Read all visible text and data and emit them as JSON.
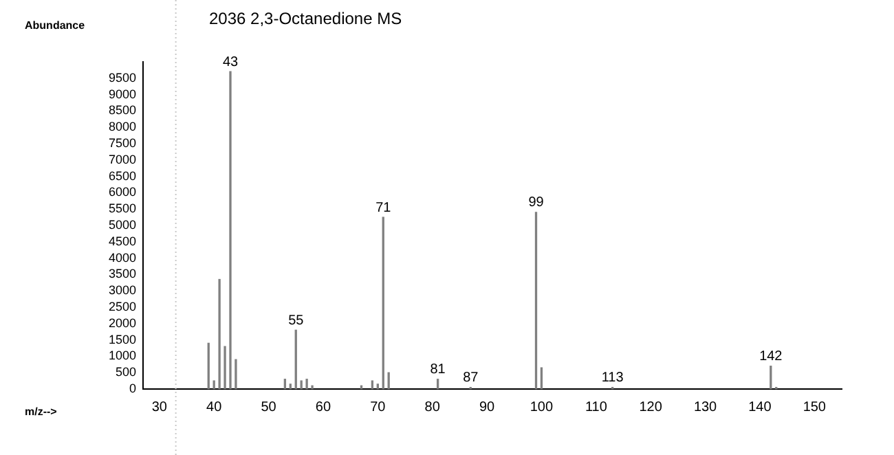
{
  "chart_data": {
    "type": "bar",
    "title": "2036 2,3-Octanedione MS",
    "xlabel": "m/z-->",
    "ylabel": "Abundance",
    "x": [
      39,
      40,
      41,
      42,
      43,
      44,
      53,
      54,
      55,
      56,
      57,
      58,
      67,
      69,
      70,
      71,
      72,
      81,
      87,
      99,
      100,
      113,
      142,
      143
    ],
    "values": [
      1400,
      250,
      3350,
      1300,
      9700,
      900,
      300,
      150,
      1800,
      250,
      300,
      100,
      100,
      250,
      150,
      5250,
      500,
      300,
      50,
      5400,
      650,
      50,
      700,
      50
    ],
    "color": "#808080",
    "xlim": [
      27,
      155
    ],
    "xticks": [
      30,
      40,
      50,
      60,
      70,
      80,
      90,
      100,
      110,
      120,
      130,
      140,
      150
    ],
    "ylim": [
      0,
      10000
    ],
    "yticks": [
      0,
      500,
      1000,
      1500,
      2000,
      2500,
      3000,
      3500,
      4000,
      4500,
      5000,
      5500,
      6000,
      6500,
      7000,
      7500,
      8000,
      8500,
      9000,
      9500
    ],
    "grid": false,
    "legend": false,
    "ref_lines": [
      {
        "axis": "x",
        "value": 33,
        "color": "#c8c8c8",
        "line_style": "dotted"
      }
    ],
    "annotations": [
      {
        "text": "43",
        "x": 43,
        "y": 9700
      },
      {
        "text": "55",
        "x": 55,
        "y": 1800
      },
      {
        "text": "71",
        "x": 71,
        "y": 5250
      },
      {
        "text": "81",
        "x": 81,
        "y": 300
      },
      {
        "text": "87",
        "x": 87,
        "y": 50
      },
      {
        "text": "99",
        "x": 99,
        "y": 5400
      },
      {
        "text": "113",
        "x": 113,
        "y": 50
      },
      {
        "text": "142",
        "x": 142,
        "y": 700
      }
    ]
  }
}
